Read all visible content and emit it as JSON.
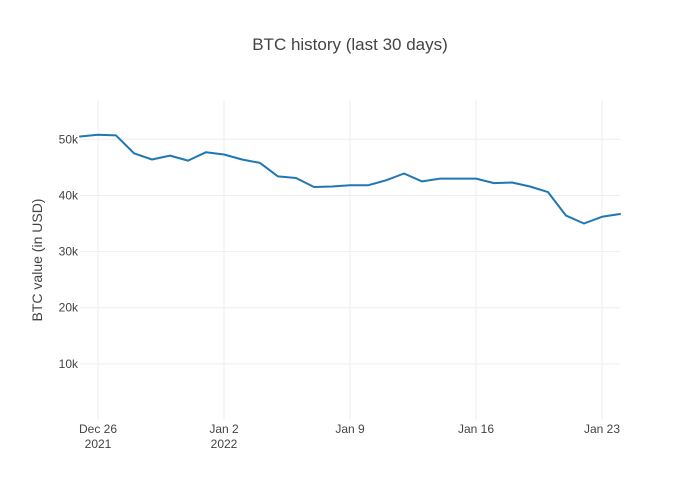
{
  "chart_data": {
    "type": "line",
    "title": "BTC history (last 30 days)",
    "xlabel": "",
    "ylabel": "BTC value (in USD)",
    "xlim": [
      "2021-12-25",
      "2022-01-24"
    ],
    "ylim": [
      0,
      57000
    ],
    "grid": true,
    "legend": "none",
    "line_color": "#1f77b4",
    "x_ticks": [
      {
        "date": "2021-12-26",
        "label": "Dec 26",
        "sublabel": "2021"
      },
      {
        "date": "2022-01-02",
        "label": "Jan 2",
        "sublabel": "2022"
      },
      {
        "date": "2022-01-09",
        "label": "Jan 9",
        "sublabel": ""
      },
      {
        "date": "2022-01-16",
        "label": "Jan 16",
        "sublabel": ""
      },
      {
        "date": "2022-01-23",
        "label": "Jan 23",
        "sublabel": ""
      }
    ],
    "y_ticks": [
      {
        "value": 10000,
        "label": "10k"
      },
      {
        "value": 20000,
        "label": "20k"
      },
      {
        "value": 30000,
        "label": "30k"
      },
      {
        "value": 40000,
        "label": "40k"
      },
      {
        "value": 50000,
        "label": "50k"
      }
    ],
    "x": [
      "2021-12-25",
      "2021-12-26",
      "2021-12-27",
      "2021-12-28",
      "2021-12-29",
      "2021-12-30",
      "2021-12-31",
      "2022-01-01",
      "2022-01-02",
      "2022-01-03",
      "2022-01-04",
      "2022-01-05",
      "2022-01-06",
      "2022-01-07",
      "2022-01-08",
      "2022-01-09",
      "2022-01-10",
      "2022-01-11",
      "2022-01-12",
      "2022-01-13",
      "2022-01-14",
      "2022-01-15",
      "2022-01-16",
      "2022-01-17",
      "2022-01-18",
      "2022-01-19",
      "2022-01-20",
      "2022-01-21",
      "2022-01-22",
      "2022-01-23",
      "2022-01-24"
    ],
    "y": [
      50500,
      50800,
      50700,
      47500,
      46400,
      47100,
      46200,
      47700,
      47300,
      46400,
      45800,
      43400,
      43100,
      41500,
      41600,
      41800,
      41800,
      42700,
      43900,
      42500,
      43000,
      43000,
      43000,
      42200,
      42300,
      41600,
      40600,
      36400,
      35000,
      36200,
      36700
    ]
  }
}
